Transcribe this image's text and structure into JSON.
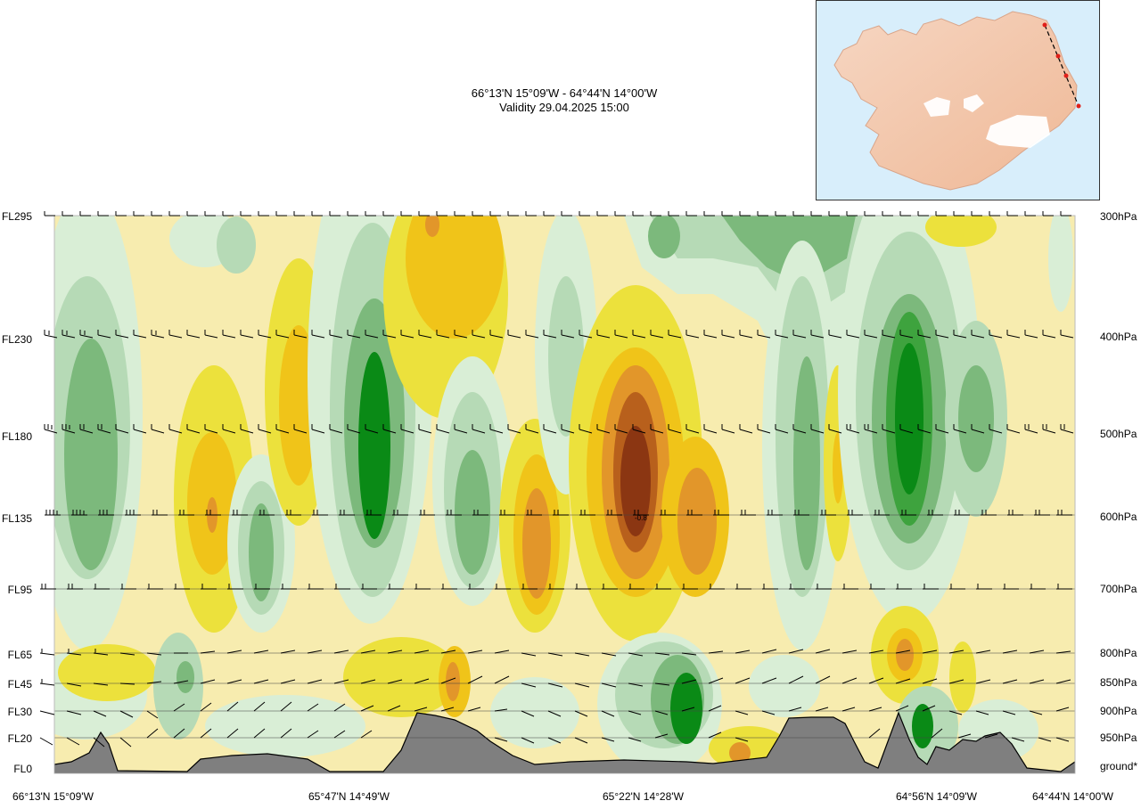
{
  "title": {
    "line1": "66°13'N 15°09'W - 64°44'N 14°00'W",
    "line2": "Validity 29.04.2025 15:00"
  },
  "chart_data": {
    "type": "heatmap",
    "variable": "vertical cross-section",
    "left_axis_ticks": [
      "FL295",
      "FL230",
      "FL180",
      "FL135",
      "FL95",
      "FL65",
      "FL45",
      "FL30",
      "FL20",
      "FL0"
    ],
    "right_axis_ticks": [
      "300hPa",
      "400hPa",
      "500hPa",
      "600hPa",
      "700hPa",
      "800hPa",
      "850hPa",
      "900hPa",
      "950hPa",
      "ground*"
    ],
    "x_ticks": [
      "66°13'N 15°09'W",
      "65°47'N 14°49'W",
      "65°22'N 14°28'W",
      "64°56'N 14°09'W",
      "64°44'N 14°00'W"
    ],
    "annotation": "-0.8",
    "colors": {
      "green_dark": "#0a8a16",
      "green_mid": "#7cb97c",
      "green_light": "#b6dab6",
      "green_pale": "#d9eed6",
      "yellow_pale": "#f7ecaf",
      "yellow": "#ece13c",
      "yellow_orange": "#f0c419",
      "orange": "#e2962a",
      "brown": "#8b3612",
      "terrain": "#7f7f7f"
    },
    "track_points": 4
  }
}
